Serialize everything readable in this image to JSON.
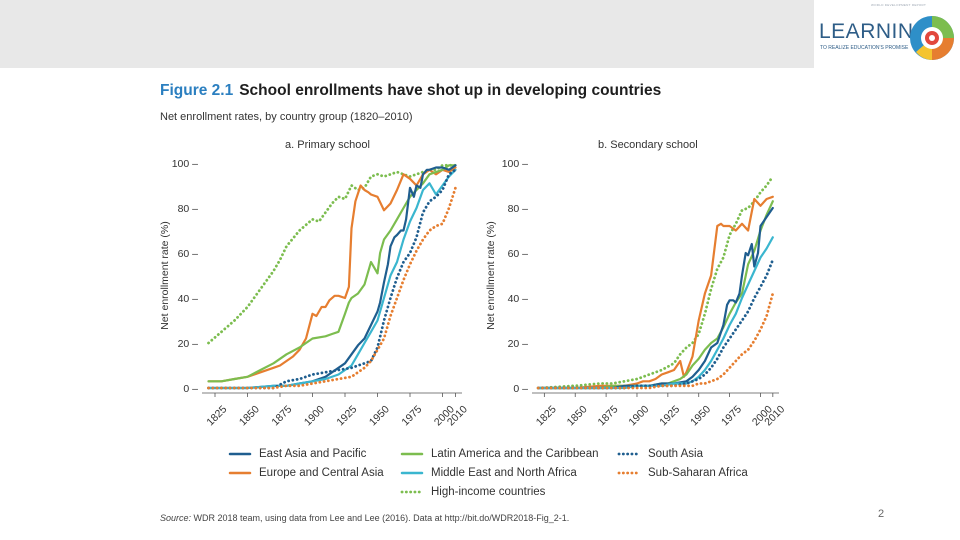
{
  "header": {
    "logo_small_text": "WORLD DEVELOPMENT REPORT",
    "logo_text": "LEARNING",
    "logo_subtitle": "TO REALIZE EDUCATION'S PROMISE"
  },
  "figure": {
    "number": "Figure 2.1",
    "title": "School enrollments have shot up in developing countries",
    "subtitle": "Net enrollment rates, by country group (1820–2010)"
  },
  "source": {
    "label": "Source:",
    "text": " WDR 2018 team, using data from Lee and Lee (2016). Data at http://bit.do/WDR2018-Fig_2-1."
  },
  "page_number": "2",
  "colors": {
    "east_asia": "#1f5e8f",
    "europe": "#e67e30",
    "latin_america": "#7cbd4f",
    "mena": "#3ab6cf",
    "south_asia": "#1f5e8f",
    "ssa": "#e67e30",
    "high_income": "#7cbd4f"
  },
  "legend": [
    {
      "key": "east_asia",
      "label": "East Asia and Pacific",
      "dashed": false
    },
    {
      "key": "latin_america",
      "label": "Latin America and the Caribbean",
      "dashed": false
    },
    {
      "key": "south_asia",
      "label": "South Asia",
      "dashed": true
    },
    {
      "key": "europe",
      "label": "Europe and Central Asia",
      "dashed": false
    },
    {
      "key": "mena",
      "label": "Middle East and North Africa",
      "dashed": false
    },
    {
      "key": "ssa",
      "label": "Sub-Saharan Africa",
      "dashed": true
    },
    {
      "key": "high_income",
      "label": "High-income countries",
      "dashed": true
    }
  ],
  "chart_data": [
    {
      "type": "line",
      "title": "a. Primary school",
      "xlabel": "",
      "ylabel": "Net enrollment rate (%)",
      "xlim": [
        1815,
        2015
      ],
      "ylim": [
        0,
        100
      ],
      "x_ticks": [
        1825,
        1850,
        1875,
        1900,
        1925,
        1950,
        1975,
        2000,
        2010
      ],
      "y_ticks": [
        0,
        20,
        40,
        60,
        80,
        100
      ],
      "y_tick_labels": [
        "0 –",
        "20 –",
        "40 –",
        "60 –",
        "80 –",
        "100 –"
      ],
      "series": [
        {
          "key": "high_income",
          "name": "High-income countries",
          "dashed": true,
          "x": [
            1820,
            1830,
            1840,
            1850,
            1860,
            1870,
            1875,
            1880,
            1890,
            1900,
            1905,
            1910,
            1915,
            1920,
            1925,
            1930,
            1935,
            1940,
            1945,
            1950,
            1955,
            1960,
            1965,
            1970,
            1975,
            1980,
            1985,
            1990,
            1995,
            2000,
            2005,
            2010
          ],
          "y": [
            20,
            25,
            30,
            36,
            44,
            52,
            57,
            63,
            70,
            75,
            74,
            78,
            82,
            85,
            84,
            90,
            88,
            89,
            94,
            95,
            94,
            95,
            96,
            95,
            94,
            95,
            96,
            97,
            97,
            99,
            99,
            99
          ]
        },
        {
          "key": "europe",
          "name": "Europe and Central Asia",
          "dashed": false,
          "x": [
            1820,
            1830,
            1840,
            1850,
            1860,
            1870,
            1875,
            1880,
            1885,
            1890,
            1895,
            1900,
            1903,
            1907,
            1910,
            1913,
            1917,
            1920,
            1925,
            1928,
            1930,
            1933,
            1937,
            1940,
            1943,
            1945,
            1950,
            1955,
            1960,
            1965,
            1970,
            1975,
            1980,
            1985,
            1990,
            1995,
            2000,
            2005,
            2010
          ],
          "y": [
            3,
            3,
            4,
            5,
            7,
            9,
            10,
            12,
            14,
            17,
            22,
            33,
            32,
            36,
            36,
            39,
            41,
            41,
            40,
            45,
            71,
            83,
            90,
            88,
            87,
            86,
            85,
            79,
            82,
            88,
            95,
            93,
            90,
            95,
            97,
            95,
            97,
            96,
            98
          ]
        },
        {
          "key": "latin_america",
          "name": "Latin America and the Caribbean",
          "dashed": false,
          "x": [
            1820,
            1830,
            1840,
            1850,
            1860,
            1870,
            1875,
            1880,
            1890,
            1900,
            1910,
            1915,
            1920,
            1925,
            1928,
            1930,
            1935,
            1940,
            1945,
            1950,
            1952,
            1955,
            1960,
            1965,
            1970,
            1975,
            1980,
            1985,
            1990,
            1995,
            2000,
            2005,
            2010
          ],
          "y": [
            3,
            3,
            4,
            5,
            8,
            11,
            13,
            15,
            18,
            22,
            23,
            24,
            25,
            33,
            38,
            40,
            42,
            46,
            56,
            51,
            60,
            66,
            70,
            75,
            80,
            85,
            88,
            91,
            95,
            96,
            97,
            99,
            99
          ]
        },
        {
          "key": "east_asia",
          "name": "East Asia and Pacific",
          "dashed": false,
          "x": [
            1820,
            1850,
            1870,
            1880,
            1890,
            1900,
            1905,
            1910,
            1915,
            1920,
            1925,
            1930,
            1935,
            1940,
            1945,
            1950,
            1952,
            1955,
            1958,
            1960,
            1963,
            1965,
            1968,
            1970,
            1972,
            1975,
            1978,
            1980,
            1983,
            1985,
            1988,
            1990,
            1995,
            2000,
            2005,
            2010
          ],
          "y": [
            0,
            0,
            1,
            1,
            2,
            3,
            4,
            5,
            7,
            9,
            11,
            15,
            19,
            22,
            28,
            34,
            38,
            47,
            55,
            63,
            67,
            68,
            70,
            70,
            75,
            89,
            85,
            90,
            89,
            95,
            97,
            97,
            98,
            98,
            97,
            99
          ]
        },
        {
          "key": "mena",
          "name": "Middle East and North Africa",
          "dashed": false,
          "x": [
            1820,
            1850,
            1870,
            1880,
            1890,
            1900,
            1910,
            1920,
            1925,
            1930,
            1935,
            1940,
            1945,
            1950,
            1955,
            1960,
            1965,
            1970,
            1975,
            1980,
            1985,
            1990,
            1995,
            2000,
            2005,
            2010
          ],
          "y": [
            0,
            0,
            1,
            1,
            2,
            3,
            4,
            6,
            8,
            10,
            15,
            20,
            25,
            30,
            40,
            50,
            56,
            66,
            74,
            80,
            88,
            91,
            86,
            90,
            94,
            97
          ]
        },
        {
          "key": "south_asia",
          "name": "South Asia",
          "dashed": true,
          "x": [
            1820,
            1850,
            1870,
            1880,
            1890,
            1900,
            1910,
            1920,
            1930,
            1940,
            1945,
            1950,
            1955,
            1960,
            1965,
            1970,
            1975,
            1980,
            1985,
            1990,
            1995,
            2000,
            2005,
            2010
          ],
          "y": [
            0,
            0,
            0,
            3,
            4,
            6,
            7,
            8,
            9,
            11,
            12,
            18,
            30,
            40,
            49,
            56,
            60,
            67,
            78,
            83,
            85,
            88,
            95,
            97
          ]
        },
        {
          "key": "ssa",
          "name": "Sub-Saharan Africa",
          "dashed": true,
          "x": [
            1820,
            1850,
            1870,
            1880,
            1890,
            1900,
            1910,
            1920,
            1930,
            1940,
            1945,
            1950,
            1955,
            1960,
            1965,
            1970,
            1975,
            1980,
            1985,
            1990,
            1995,
            2000,
            2005,
            2010
          ],
          "y": [
            0,
            0,
            0,
            1,
            1,
            2,
            3,
            4,
            5,
            9,
            12,
            17,
            22,
            32,
            40,
            48,
            55,
            61,
            66,
            70,
            72,
            73,
            80,
            89
          ]
        }
      ]
    },
    {
      "type": "line",
      "title": "b. Secondary school",
      "xlabel": "",
      "ylabel": "Net enrollment rate (%)",
      "xlim": [
        1815,
        2015
      ],
      "ylim": [
        0,
        100
      ],
      "x_ticks": [
        1825,
        1850,
        1875,
        1900,
        1925,
        1950,
        1975,
        2000,
        2010
      ],
      "y_ticks": [
        0,
        20,
        40,
        60,
        80,
        100
      ],
      "y_tick_labels": [
        "0 –",
        "20 –",
        "40 –",
        "60 –",
        "80 –",
        "100 –"
      ],
      "series": [
        {
          "key": "high_income",
          "name": "High-income countries",
          "dashed": true,
          "x": [
            1820,
            1850,
            1870,
            1880,
            1890,
            1900,
            1910,
            1920,
            1930,
            1935,
            1940,
            1945,
            1950,
            1955,
            1960,
            1965,
            1970,
            1975,
            1980,
            1985,
            1990,
            1995,
            2000,
            2005,
            2010
          ],
          "y": [
            0,
            1,
            2,
            2,
            3,
            4,
            6,
            8,
            11,
            15,
            18,
            20,
            24,
            33,
            44,
            53,
            58,
            68,
            73,
            79,
            80,
            83,
            87,
            90,
            94
          ]
        },
        {
          "key": "europe",
          "name": "Europe and Central Asia",
          "dashed": false,
          "x": [
            1820,
            1850,
            1870,
            1880,
            1890,
            1900,
            1905,
            1910,
            1915,
            1920,
            1925,
            1930,
            1935,
            1938,
            1940,
            1945,
            1950,
            1955,
            1960,
            1965,
            1968,
            1970,
            1975,
            1980,
            1985,
            1990,
            1995,
            2000,
            2005,
            2010
          ],
          "y": [
            0,
            0,
            1,
            1,
            1,
            2,
            3,
            3,
            4,
            6,
            7,
            8,
            12,
            5,
            7,
            14,
            30,
            42,
            50,
            72,
            73,
            72,
            72,
            70,
            73,
            70,
            84,
            81,
            84,
            85
          ]
        },
        {
          "key": "latin_america",
          "name": "Latin America and the Caribbean",
          "dashed": false,
          "x": [
            1820,
            1850,
            1870,
            1880,
            1890,
            1900,
            1910,
            1920,
            1925,
            1930,
            1935,
            1940,
            1945,
            1950,
            1955,
            1960,
            1965,
            1970,
            1975,
            1980,
            1985,
            1990,
            1995,
            2000,
            2005,
            2010
          ],
          "y": [
            0,
            0,
            0,
            1,
            1,
            1,
            1,
            2,
            2,
            3,
            4,
            6,
            10,
            13,
            17,
            20,
            22,
            27,
            33,
            38,
            42,
            55,
            61,
            70,
            77,
            83
          ]
        },
        {
          "key": "east_asia",
          "name": "East Asia and Pacific",
          "dashed": false,
          "x": [
            1820,
            1850,
            1870,
            1880,
            1890,
            1900,
            1910,
            1920,
            1930,
            1940,
            1945,
            1950,
            1955,
            1960,
            1965,
            1970,
            1973,
            1975,
            1978,
            1980,
            1983,
            1985,
            1988,
            1990,
            1993,
            1995,
            1998,
            2000,
            2005,
            2010
          ],
          "y": [
            0,
            0,
            0,
            0,
            1,
            1,
            1,
            2,
            2,
            3,
            5,
            8,
            12,
            18,
            20,
            28,
            37,
            39,
            39,
            38,
            42,
            50,
            60,
            59,
            64,
            54,
            60,
            72,
            76,
            80
          ]
        },
        {
          "key": "mena",
          "name": "Middle East and North Africa",
          "dashed": false,
          "x": [
            1820,
            1850,
            1870,
            1880,
            1890,
            1900,
            1910,
            1920,
            1930,
            1940,
            1945,
            1950,
            1955,
            1960,
            1965,
            1970,
            1975,
            1980,
            1985,
            1990,
            1995,
            2000,
            2005,
            2010
          ],
          "y": [
            0,
            0,
            0,
            0,
            0,
            1,
            1,
            1,
            2,
            2,
            3,
            5,
            8,
            12,
            17,
            22,
            28,
            33,
            40,
            46,
            52,
            58,
            62,
            67
          ]
        },
        {
          "key": "south_asia",
          "name": "South Asia",
          "dashed": true,
          "x": [
            1820,
            1850,
            1870,
            1880,
            1890,
            1900,
            1910,
            1920,
            1930,
            1940,
            1945,
            1950,
            1955,
            1960,
            1965,
            1970,
            1975,
            1980,
            1985,
            1990,
            1995,
            2000,
            2005,
            2010
          ],
          "y": [
            0,
            0,
            0,
            0,
            0,
            1,
            1,
            1,
            1,
            2,
            3,
            4,
            6,
            9,
            13,
            18,
            22,
            26,
            30,
            34,
            40,
            45,
            50,
            57
          ]
        },
        {
          "key": "ssa",
          "name": "Sub-Saharan Africa",
          "dashed": true,
          "x": [
            1820,
            1850,
            1870,
            1880,
            1890,
            1900,
            1910,
            1920,
            1930,
            1940,
            1945,
            1950,
            1955,
            1960,
            1965,
            1970,
            1975,
            1980,
            1985,
            1990,
            1995,
            2000,
            2005,
            2010
          ],
          "y": [
            0,
            0,
            0,
            0,
            0,
            0,
            0,
            1,
            1,
            1,
            1,
            2,
            2,
            3,
            4,
            6,
            9,
            12,
            15,
            17,
            21,
            26,
            32,
            42
          ]
        }
      ]
    }
  ]
}
